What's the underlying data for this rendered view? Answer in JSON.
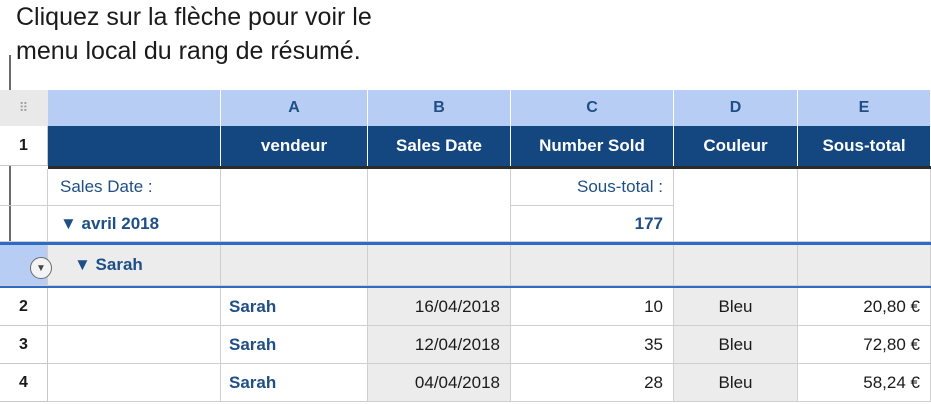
{
  "callout": {
    "line1": "Cliquez sur la flèche pour voir le",
    "line2": "menu local du rang de résumé."
  },
  "column_letters": [
    "A",
    "B",
    "C",
    "D",
    "E"
  ],
  "header_row": {
    "number": "1",
    "headers": [
      "vendeur",
      "Sales Date",
      "Number Sold",
      "Couleur",
      "Sous-total"
    ]
  },
  "summary_top": {
    "label": "Sales Date :",
    "group": "▼ avril 2018",
    "subtotal_label": "Sous-total :",
    "subtotal_value": "177"
  },
  "summary_sub": {
    "group": "▼ Sarah"
  },
  "rows": [
    {
      "number": "2",
      "vendeur": "Sarah",
      "date": "16/04/2018",
      "sold": "10",
      "couleur": "Bleu",
      "subtotal": "20,80 €"
    },
    {
      "number": "3",
      "vendeur": "Sarah",
      "date": "12/04/2018",
      "sold": "35",
      "couleur": "Bleu",
      "subtotal": "72,80 €"
    },
    {
      "number": "4",
      "vendeur": "Sarah",
      "date": "04/04/2018",
      "sold": "28",
      "couleur": "Bleu",
      "subtotal": "58,24 €"
    }
  ],
  "icons": {
    "grip": "grip-dots-icon",
    "popup": "popup-arrow-icon"
  }
}
